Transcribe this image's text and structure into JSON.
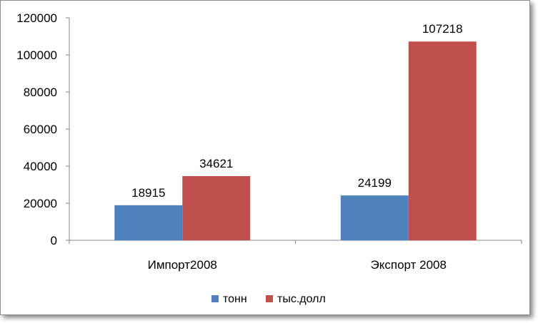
{
  "chart_data": {
    "type": "bar",
    "categories": [
      "Импорт2008",
      "Экспорт 2008"
    ],
    "series": [
      {
        "name": "тонн",
        "values": [
          18915,
          24199
        ],
        "color": "#4f81bd"
      },
      {
        "name": "тыс.долл",
        "values": [
          34621,
          107218
        ],
        "color": "#c0504d"
      }
    ],
    "ylim": [
      0,
      120000
    ],
    "yticks": [
      0,
      20000,
      40000,
      60000,
      80000,
      100000,
      120000
    ],
    "grid": false,
    "data_labels": true,
    "legend_position": "bottom"
  }
}
